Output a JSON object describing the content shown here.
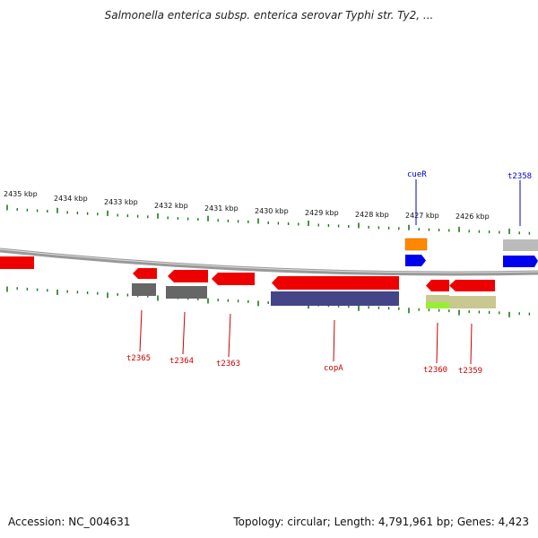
{
  "title": "Salmonella enterica subsp. enterica serovar Typhi str. Ty2, ...",
  "footer": {
    "accession": "Accession: NC_004631",
    "topology": "Topology: circular; Length: 4,791,961 bp; Genes: 4,423"
  },
  "scale_labels": [
    "2435 kbp",
    "2434 kbp",
    "2433 kbp",
    "2432 kbp",
    "2431 kbp",
    "2430 kbp",
    "2429 kbp",
    "2428 kbp",
    "2427 kbp",
    "2426 kbp"
  ],
  "genes_top": [
    {
      "label": "cueR",
      "color": "#0000cc"
    },
    {
      "label": "t2358",
      "color": "#0000cc"
    }
  ],
  "genes_bottom": [
    {
      "label": "t2365",
      "color": "#cc0000"
    },
    {
      "label": "t2364",
      "color": "#cc0000"
    },
    {
      "label": "t2363",
      "color": "#cc0000"
    },
    {
      "label": "copA",
      "color": "#cc0000"
    },
    {
      "label": "t2360",
      "color": "#cc0000"
    },
    {
      "label": "t2359",
      "color": "#cc0000"
    }
  ],
  "colors": {
    "backbone": "#999999",
    "ticks": "#1a7a1a",
    "gene_red": "#ee0000",
    "gene_blue": "#0000ee",
    "gene_orange": "#ff8800",
    "gene_gray": "#666666",
    "gene_purple": "#444488",
    "gene_khaki": "#c8c890",
    "gene_lime": "#99ee33",
    "gene_lightgray": "#bbbbbb"
  }
}
